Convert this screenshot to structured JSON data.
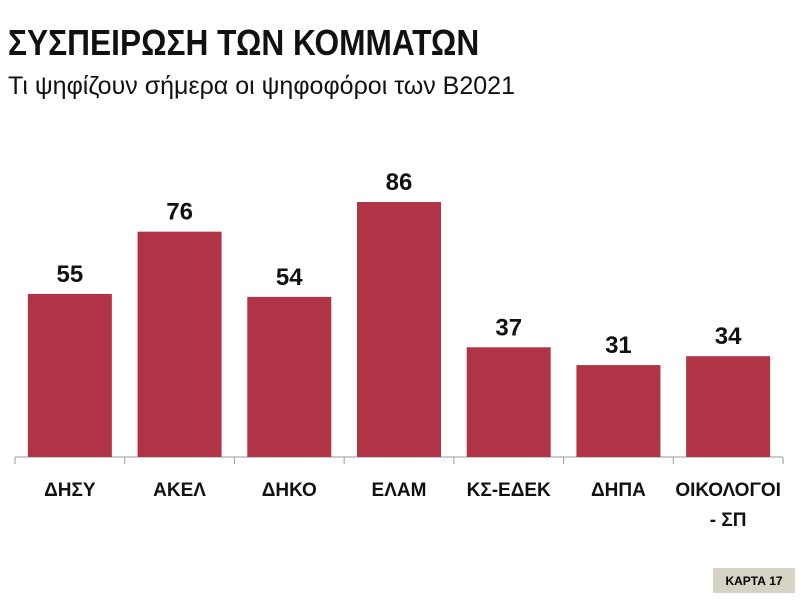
{
  "chart_data": {
    "type": "bar",
    "title": "ΣΥΣΠΕΙΡΩΣΗ ΤΩΝ ΚΟΜΜΑΤΩΝ",
    "subtitle": "Τι ψηφίζουν σήμερα οι ψηφοφόροι των Β2021",
    "categories": [
      "ΔΗΣΥ",
      "ΑΚΕΛ",
      "ΔΗΚΟ",
      "ΕΛΑΜ",
      "ΚΣ-ΕΔΕΚ",
      "ΔΗΠΑ",
      [
        "ΟΙΚΟΛΟΓΟΙ",
        "- ΣΠ"
      ]
    ],
    "values": [
      55,
      76,
      54,
      86,
      37,
      31,
      34
    ],
    "ylim": [
      0,
      86
    ],
    "grid": false,
    "bar_color": "#b03446",
    "data_labels": true
  },
  "footer": {
    "card_label": "ΚΑΡΤΑ 17"
  }
}
